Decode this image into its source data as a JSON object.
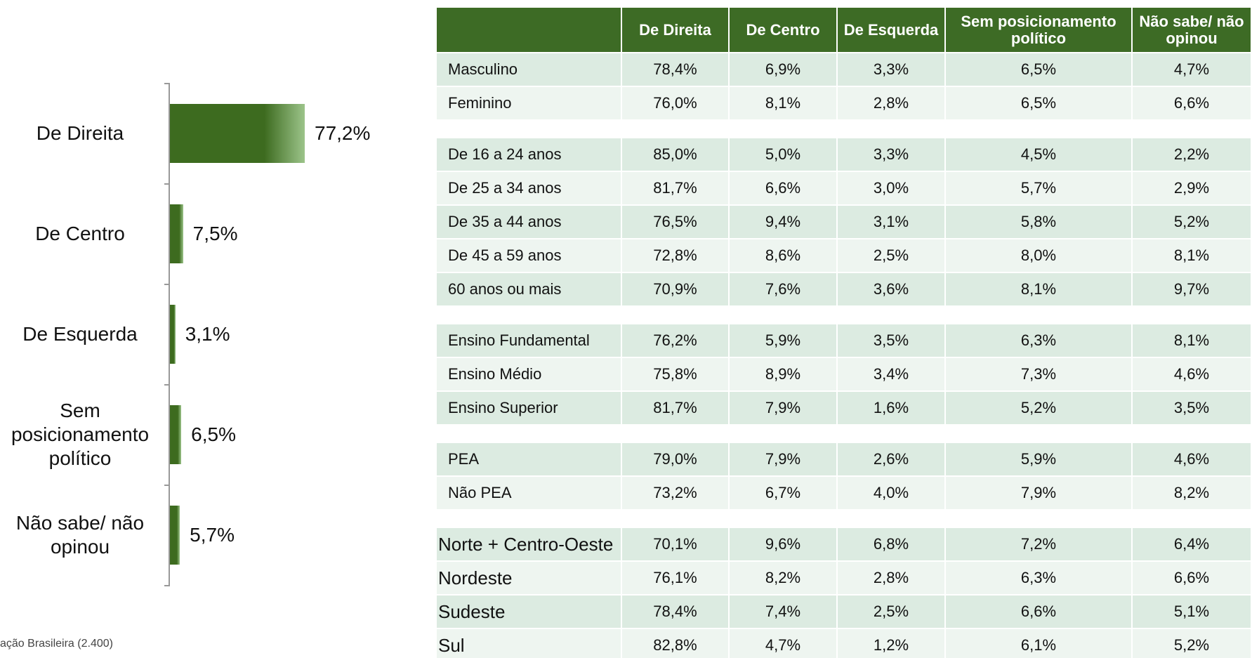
{
  "chart_data": {
    "type": "hbar",
    "categories": [
      "De Direita",
      "De Centro",
      "De Esquerda",
      "Sem posicionamento político",
      "Não sabe/ não opinou"
    ],
    "values": [
      77.2,
      7.5,
      3.1,
      6.5,
      5.7
    ],
    "value_labels": [
      "77,2%",
      "7,5%",
      "3,1%",
      "6,5%",
      "5,7%"
    ],
    "color": "#3d6b1f"
  },
  "table": {
    "header": [
      "De Direita",
      "De Centro",
      "De Esquerda",
      "Sem posicionamento político",
      "Não sabe/ não opinou"
    ],
    "groups": [
      [
        [
          "Masculino",
          "78,4%",
          "6,9%",
          "3,3%",
          "6,5%",
          "4,7%"
        ],
        [
          "Feminino",
          "76,0%",
          "8,1%",
          "2,8%",
          "6,5%",
          "6,6%"
        ]
      ],
      [
        [
          "De 16 a 24 anos",
          "85,0%",
          "5,0%",
          "3,3%",
          "4,5%",
          "2,2%"
        ],
        [
          "De 25 a 34 anos",
          "81,7%",
          "6,6%",
          "3,0%",
          "5,7%",
          "2,9%"
        ],
        [
          "De 35 a 44 anos",
          "76,5%",
          "9,4%",
          "3,1%",
          "5,8%",
          "5,2%"
        ],
        [
          "De 45 a 59 anos",
          "72,8%",
          "8,6%",
          "2,5%",
          "8,0%",
          "8,1%"
        ],
        [
          "60 anos ou mais",
          "70,9%",
          "7,6%",
          "3,6%",
          "8,1%",
          "9,7%"
        ]
      ],
      [
        [
          "Ensino Fundamental",
          "76,2%",
          "5,9%",
          "3,5%",
          "6,3%",
          "8,1%"
        ],
        [
          "Ensino Médio",
          "75,8%",
          "8,9%",
          "3,4%",
          "7,3%",
          "4,6%"
        ],
        [
          "Ensino Superior",
          "81,7%",
          "7,9%",
          "1,6%",
          "5,2%",
          "3,5%"
        ]
      ],
      [
        [
          "PEA",
          "79,0%",
          "7,9%",
          "2,6%",
          "5,9%",
          "4,6%"
        ],
        [
          "Não PEA",
          "73,2%",
          "6,7%",
          "4,0%",
          "7,9%",
          "8,2%"
        ]
      ],
      [
        [
          "Norte + Centro-Oeste",
          "70,1%",
          "9,6%",
          "6,8%",
          "7,2%",
          "6,4%"
        ],
        [
          "Nordeste",
          "76,1%",
          "8,2%",
          "2,8%",
          "6,3%",
          "6,6%"
        ],
        [
          "Sudeste",
          "78,4%",
          "7,4%",
          "2,5%",
          "6,6%",
          "5,1%"
        ],
        [
          "Sul",
          "82,8%",
          "4,7%",
          "1,2%",
          "6,1%",
          "5,2%"
        ]
      ]
    ]
  },
  "footnote": "ação Brasileira (2.400)"
}
